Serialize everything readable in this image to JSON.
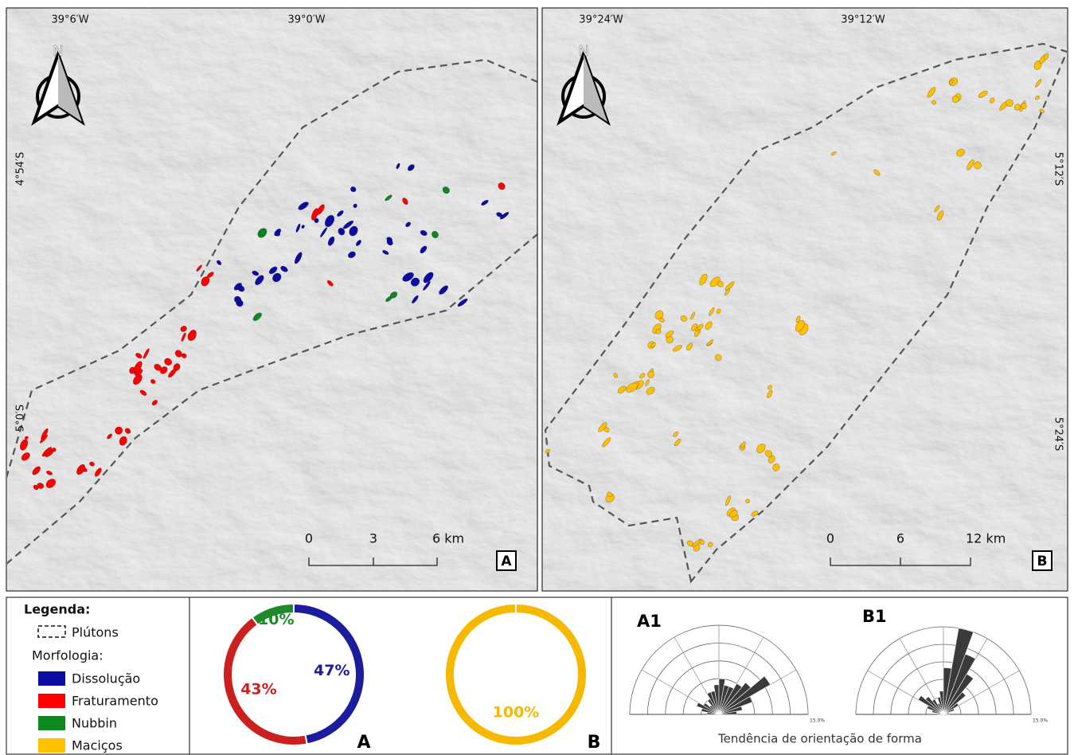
{
  "maps": [
    {
      "label": "A",
      "lon_labels": [
        "39°6′W",
        "39°0′W"
      ],
      "lat_labels": [
        "4°54′S",
        "5°0′S"
      ],
      "scale": [
        "0",
        "3",
        "6 km"
      ]
    },
    {
      "label": "B",
      "lon_labels": [
        "39°24′W",
        "39°12′W"
      ],
      "lat_labels": [
        "5°12′S",
        "5°24′S"
      ],
      "scale": [
        "0",
        "6",
        "12 km"
      ]
    }
  ],
  "north": "N",
  "legend": {
    "title": "Legenda:",
    "pluton": "Plútons",
    "morph_title": "Morfologia:",
    "items": [
      {
        "label": "Dissolução",
        "color": "#0c0ca2"
      },
      {
        "label": "Fraturamento",
        "color": "#ff0000"
      },
      {
        "label": "Nubbin",
        "color": "#0b8a1f"
      },
      {
        "label": "Maciços",
        "color": "#ffc000"
      }
    ]
  },
  "chart_data": [
    {
      "type": "pie",
      "title": "A",
      "categories": [
        "Dissolução",
        "Fraturamento",
        "Nubbin"
      ],
      "values": [
        47,
        43,
        10
      ],
      "value_labels": [
        "47%",
        "43%",
        "10%"
      ],
      "colors": [
        "#1c1c9e",
        "#cc1f1f",
        "#1e8a2a"
      ]
    },
    {
      "type": "pie",
      "title": "B",
      "categories": [
        "Maciços"
      ],
      "values": [
        100
      ],
      "value_labels": [
        "100%"
      ],
      "colors": [
        "#f7b900"
      ]
    },
    {
      "type": "rose",
      "title": "A1",
      "directions": [
        -85,
        -75,
        -65,
        -55,
        -45,
        -35,
        -25,
        -15,
        -5,
        5,
        15,
        25,
        35,
        45,
        55,
        65,
        75,
        85
      ],
      "values": [
        2,
        3,
        4,
        3,
        2,
        3,
        4,
        4,
        5,
        6,
        5,
        5,
        6,
        7,
        10,
        6,
        4,
        3
      ],
      "rlim": [
        0,
        15
      ],
      "rticks": [
        3,
        6,
        9,
        12,
        {
          "value": 15,
          "label": "15.0%"
        }
      ]
    },
    {
      "type": "rose",
      "title": "B1",
      "directions": [
        -85,
        -75,
        -65,
        -55,
        -45,
        -35,
        -25,
        -15,
        -5,
        5,
        15,
        25,
        35,
        45,
        55,
        65,
        75,
        85
      ],
      "values": [
        1,
        2,
        3,
        5,
        4,
        3,
        2,
        3,
        4,
        8,
        15,
        11,
        8,
        5,
        3,
        2,
        1,
        1
      ],
      "rlim": [
        0,
        15
      ],
      "rticks": [
        3,
        6,
        9,
        12,
        {
          "value": 15,
          "label": "15.0%"
        }
      ]
    }
  ],
  "rose_caption": "Tendência de orientação de forma"
}
